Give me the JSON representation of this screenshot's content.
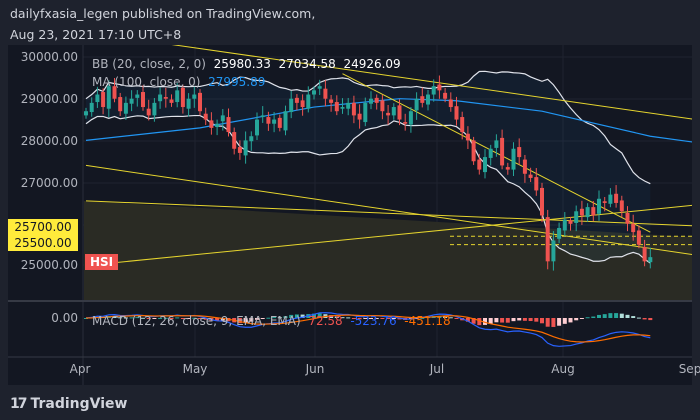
{
  "header": {
    "line1": "dailyfxasia_legen published on TradingView.com,",
    "line2": "Aug 23, 2021 17:10 UTC+8"
  },
  "brand": "TradingView",
  "symbol_tag": "HSI",
  "colors": {
    "up": "#26a69a",
    "down": "#ef5350",
    "ma": "#2196f3",
    "bb": "#e0e3eb",
    "trend": "#e6d52e",
    "macd": "#2962ff",
    "signal": "#ff6d00"
  },
  "chart_data": {
    "type": "candlestick",
    "y_ticks": [
      "30000.00",
      "29000.00",
      "28000.00",
      "27000.00",
      "25000.00"
    ],
    "price_tags": [
      "25700.00",
      "25500.00"
    ],
    "x_ticks": [
      "Apr",
      "May",
      "Jun",
      "Jul",
      "Aug",
      "Sep"
    ],
    "ylim": [
      24400,
      30300
    ],
    "legend": {
      "bb_label": "BB (20, close, 2, 0)",
      "bb_values": [
        "25980.33",
        "27034.58",
        "24926.09"
      ],
      "ma_label": "MA (100, close, 0)",
      "ma_value": "27995.89",
      "macd_label": "MACD (12, 26, close, 9, EMA, EMA)",
      "macd_values": [
        "72.58",
        "-523.76",
        "-451.18"
      ],
      "macd_zero": "0.00"
    },
    "closes": [
      28700,
      28900,
      29100,
      28800,
      29300,
      29000,
      28700,
      28900,
      29000,
      29100,
      28800,
      28600,
      28900,
      29100,
      29000,
      28900,
      29200,
      28800,
      29000,
      29100,
      28700,
      28500,
      28300,
      28400,
      28600,
      28200,
      27800,
      27700,
      28000,
      28100,
      28500,
      28600,
      28400,
      28500,
      28300,
      28700,
      29000,
      28900,
      28800,
      29100,
      29200,
      29300,
      29000,
      28900,
      28700,
      28800,
      28900,
      28600,
      28500,
      28900,
      29000,
      28900,
      28700,
      28600,
      28800,
      28500,
      28400,
      28700,
      29000,
      28900,
      29100,
      29300,
      29200,
      29000,
      28800,
      28500,
      28200,
      28000,
      27500,
      27300,
      27600,
      27800,
      28000,
      27400,
      27300,
      27800,
      27600,
      27200,
      27100,
      26800,
      26200,
      25100,
      25600,
      25900,
      26100,
      26000,
      26300,
      26200,
      26400,
      26200,
      26600,
      26500,
      26700,
      26500,
      26300,
      26000,
      25800,
      25500,
      25100,
      25200
    ],
    "ma100": [
      [
        0,
        28000
      ],
      [
        20,
        28300
      ],
      [
        40,
        28800
      ],
      [
        55,
        29000
      ],
      [
        65,
        28950
      ],
      [
        80,
        28700
      ],
      [
        99,
        28100
      ],
      [
        107,
        27950
      ]
    ],
    "trendlines": [
      [
        15,
        30300,
        107,
        28500
      ],
      [
        0,
        27400,
        107,
        25250
      ],
      [
        0,
        25000,
        107,
        26450
      ],
      [
        0,
        26550,
        107,
        25950
      ],
      [
        45,
        29600,
        99,
        25800
      ]
    ],
    "dashed_levels": [
      25700,
      25500
    ]
  }
}
